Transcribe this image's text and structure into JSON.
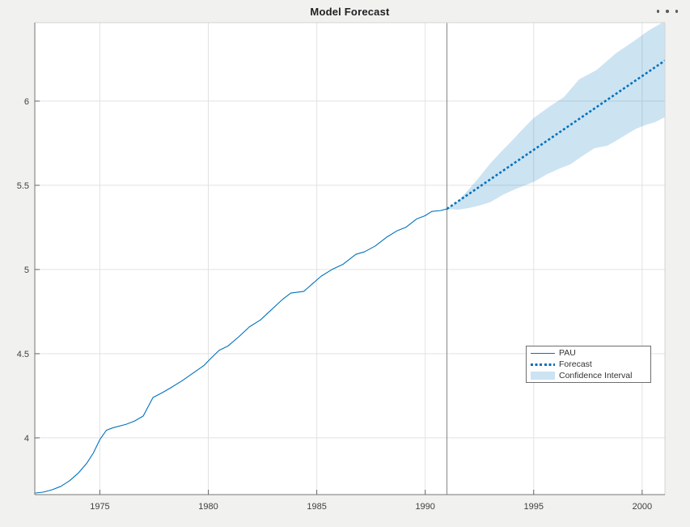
{
  "figure": {
    "title": "Model Forecast",
    "background": "#f1f1f0",
    "toolbar": {
      "menu_icon": "ellipsis-horizontal"
    }
  },
  "chart_data": {
    "type": "line",
    "title": "Model Forecast",
    "xlabel": "",
    "ylabel": "",
    "xlim": [
      1972,
      2001.05
    ],
    "ylim": [
      3.663,
      6.466
    ],
    "x_ticks": [
      1975,
      1980,
      1985,
      1990,
      1995,
      2000
    ],
    "x_tick_labels": [
      "1975",
      "1980",
      "1985",
      "1990",
      "1995",
      "2000"
    ],
    "y_ticks": [
      4,
      4.5,
      5,
      5.5,
      6
    ],
    "y_tick_labels": [
      "4",
      "4.5",
      "5",
      "5.5",
      "6"
    ],
    "grid": true,
    "forecast_start_x": 1991,
    "colors": {
      "line": "#0072BD",
      "band_fill": "#0072BD",
      "band_opacity": 0.2,
      "band_legend": "#cce3f2",
      "grid": "#e2e2e2",
      "axis_dark": "#767676",
      "axis_light": "#d4d4d4",
      "tick": "#666666",
      "tick_label": "#3f3f3f",
      "vline": "#858585",
      "plot_bg": "#ffffff"
    },
    "legend": {
      "position": "inside-right",
      "entries": [
        "PAU",
        "Forecast",
        "Confidence Interval"
      ]
    },
    "series": [
      {
        "name": "PAU",
        "type": "line",
        "style": "solid",
        "width": 1.1,
        "points": [
          [
            1972.0,
            3.672
          ],
          [
            1972.4,
            3.678
          ],
          [
            1972.8,
            3.692
          ],
          [
            1973.2,
            3.712
          ],
          [
            1973.6,
            3.745
          ],
          [
            1974.0,
            3.79
          ],
          [
            1974.4,
            3.85
          ],
          [
            1974.7,
            3.91
          ],
          [
            1975.0,
            3.99
          ],
          [
            1975.3,
            4.045
          ],
          [
            1975.6,
            4.06
          ],
          [
            1976.2,
            4.08
          ],
          [
            1976.6,
            4.1
          ],
          [
            1977.0,
            4.13
          ],
          [
            1977.45,
            4.24
          ],
          [
            1977.9,
            4.27
          ],
          [
            1978.3,
            4.3
          ],
          [
            1978.8,
            4.34
          ],
          [
            1979.3,
            4.385
          ],
          [
            1979.8,
            4.43
          ],
          [
            1980.1,
            4.47
          ],
          [
            1980.5,
            4.52
          ],
          [
            1980.9,
            4.545
          ],
          [
            1981.4,
            4.6
          ],
          [
            1981.9,
            4.66
          ],
          [
            1982.4,
            4.7
          ],
          [
            1982.9,
            4.76
          ],
          [
            1983.4,
            4.82
          ],
          [
            1983.8,
            4.86
          ],
          [
            1984.4,
            4.87
          ],
          [
            1984.8,
            4.915
          ],
          [
            1985.2,
            4.96
          ],
          [
            1985.7,
            5.0
          ],
          [
            1986.2,
            5.03
          ],
          [
            1986.8,
            5.09
          ],
          [
            1987.2,
            5.105
          ],
          [
            1987.7,
            5.14
          ],
          [
            1988.2,
            5.19
          ],
          [
            1988.7,
            5.23
          ],
          [
            1989.1,
            5.25
          ],
          [
            1989.6,
            5.3
          ],
          [
            1990.0,
            5.32
          ],
          [
            1990.3,
            5.345
          ],
          [
            1990.7,
            5.35
          ],
          [
            1991.0,
            5.36
          ]
        ]
      },
      {
        "name": "Forecast",
        "type": "line",
        "style": "dotted",
        "width": 2.6,
        "points": [
          [
            1991,
            5.36
          ],
          [
            2001.05,
            6.241
          ]
        ]
      },
      {
        "name": "Confidence Interval",
        "type": "band",
        "upper": [
          [
            1991,
            5.36
          ],
          [
            1991.5,
            5.405
          ],
          [
            1992,
            5.475
          ],
          [
            1992.5,
            5.55
          ],
          [
            1993,
            5.63
          ],
          [
            1993.5,
            5.7
          ],
          [
            1994,
            5.765
          ],
          [
            1994.5,
            5.835
          ],
          [
            1995,
            5.9
          ],
          [
            1995.7,
            5.965
          ],
          [
            1996.4,
            6.025
          ],
          [
            1997.1,
            6.13
          ],
          [
            1997.9,
            6.185
          ],
          [
            1998.8,
            6.285
          ],
          [
            1999.6,
            6.355
          ],
          [
            2000.3,
            6.42
          ],
          [
            2001.05,
            6.475
          ]
        ],
        "lower": [
          [
            1991,
            5.36
          ],
          [
            1991.5,
            5.355
          ],
          [
            1992,
            5.365
          ],
          [
            1992.5,
            5.38
          ],
          [
            1993,
            5.4
          ],
          [
            1993.6,
            5.445
          ],
          [
            1994.2,
            5.48
          ],
          [
            1995,
            5.52
          ],
          [
            1995.6,
            5.565
          ],
          [
            1996.2,
            5.6
          ],
          [
            1996.7,
            5.625
          ],
          [
            1997.2,
            5.67
          ],
          [
            1997.8,
            5.72
          ],
          [
            1998.4,
            5.735
          ],
          [
            1999,
            5.78
          ],
          [
            1999.7,
            5.835
          ],
          [
            2000.2,
            5.86
          ],
          [
            2000.6,
            5.875
          ],
          [
            2001.05,
            5.905
          ]
        ]
      }
    ]
  }
}
